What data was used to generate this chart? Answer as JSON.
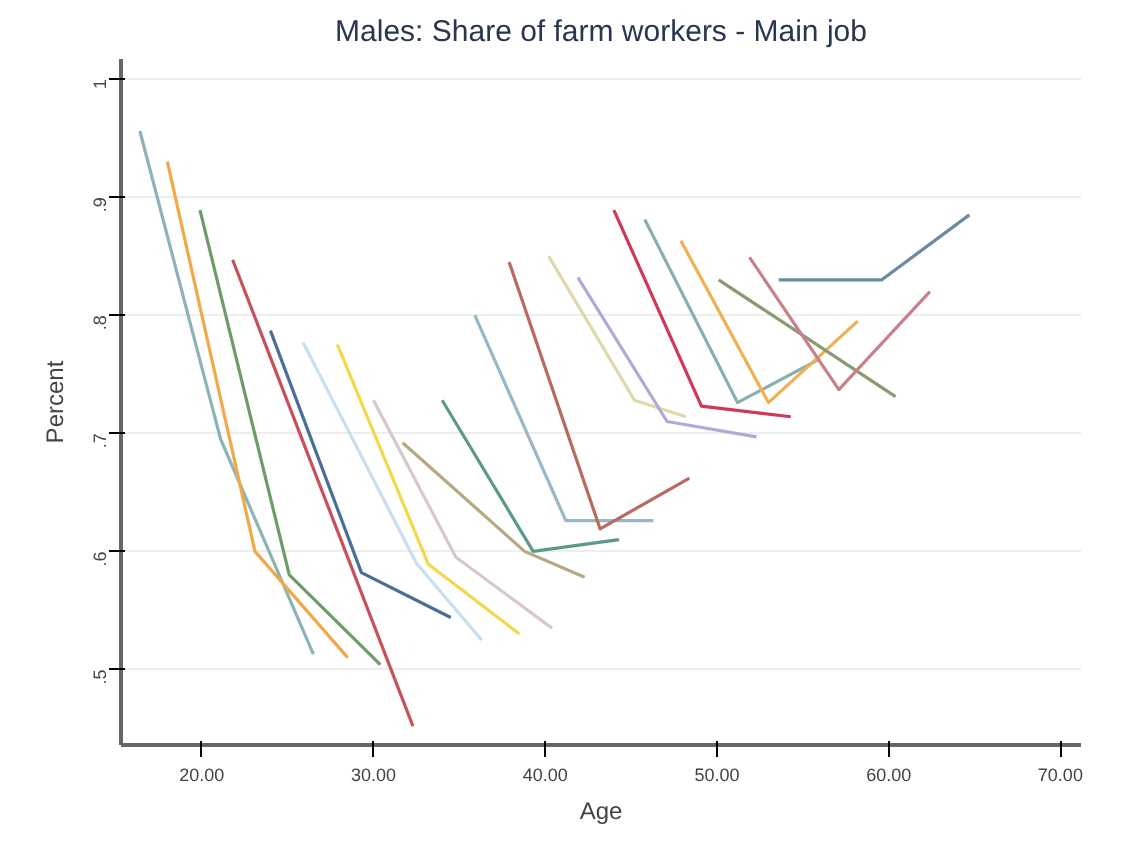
{
  "chart_data": {
    "type": "line",
    "title": "Males: Share of farm workers - Main job",
    "xlabel": "Age",
    "ylabel": "Percent",
    "xlim": [
      15.3,
      71.2
    ],
    "ylim": [
      0.436,
      1.017
    ],
    "xticks": [
      {
        "value": 20,
        "label": "20.00"
      },
      {
        "value": 30,
        "label": "30.00"
      },
      {
        "value": 40,
        "label": "40.00"
      },
      {
        "value": 50,
        "label": "50.00"
      },
      {
        "value": 60,
        "label": "60.00"
      },
      {
        "value": 70,
        "label": "70.00"
      }
    ],
    "yticks": [
      {
        "value": 0.5,
        "label": ".5"
      },
      {
        "value": 0.6,
        "label": ".6"
      },
      {
        "value": 0.7,
        "label": ".7"
      },
      {
        "value": 0.8,
        "label": ".8"
      },
      {
        "value": 0.9,
        "label": ".9"
      },
      {
        "value": 1,
        "label": "1"
      }
    ],
    "grid": "y",
    "marker": "none",
    "line_style": "solid",
    "series": [
      {
        "color": "#8fb1b8",
        "x": [
          16.4,
          21.1,
          26.5
        ],
        "values": [
          0.956,
          0.695,
          0.513
        ]
      },
      {
        "color": "#f0a848",
        "x": [
          18.0,
          23.1,
          28.5
        ],
        "values": [
          0.93,
          0.6,
          0.51
        ]
      },
      {
        "color": "#6f9a6a",
        "x": [
          19.9,
          25.1,
          30.4
        ],
        "values": [
          0.889,
          0.58,
          0.504
        ]
      },
      {
        "color": "#c8505a",
        "x": [
          21.8,
          32.3
        ],
        "values": [
          0.847,
          0.452
        ]
      },
      {
        "color": "#4a6e9a",
        "x": [
          24.0,
          29.3,
          34.5
        ],
        "values": [
          0.787,
          0.582,
          0.544
        ]
      },
      {
        "color": "#c8dff0",
        "x": [
          25.9,
          32.5,
          36.3
        ],
        "values": [
          0.777,
          0.59,
          0.525
        ]
      },
      {
        "color": "#f2d84a",
        "x": [
          27.9,
          33.2,
          38.5
        ],
        "values": [
          0.775,
          0.589,
          0.53
        ]
      },
      {
        "color": "#d8c8c8",
        "x": [
          30.0,
          34.8,
          40.4
        ],
        "values": [
          0.728,
          0.595,
          0.535
        ]
      },
      {
        "color": "#b8a880",
        "x": [
          31.7,
          38.8,
          42.3
        ],
        "values": [
          0.692,
          0.6,
          0.578
        ]
      },
      {
        "color": "#5a9a8a",
        "x": [
          34.0,
          39.3,
          44.3
        ],
        "values": [
          0.728,
          0.6,
          0.61
        ]
      },
      {
        "color": "#98b8c8",
        "x": [
          35.9,
          41.2,
          46.3
        ],
        "values": [
          0.8,
          0.626,
          0.626
        ]
      },
      {
        "color": "#b86a60",
        "x": [
          37.9,
          43.2,
          48.4
        ],
        "values": [
          0.845,
          0.619,
          0.662
        ]
      },
      {
        "color": "#e0d8a8",
        "x": [
          40.2,
          45.2,
          48.2
        ],
        "values": [
          0.85,
          0.728,
          0.714
        ]
      },
      {
        "color": "#b0a8d8",
        "x": [
          41.9,
          47.1,
          52.3
        ],
        "values": [
          0.832,
          0.71,
          0.697
        ]
      },
      {
        "color": "#d03858",
        "x": [
          44.0,
          49.1,
          54.3
        ],
        "values": [
          0.889,
          0.723,
          0.714
        ]
      },
      {
        "color": "#88b0b0",
        "x": [
          45.8,
          51.2,
          56.0
        ],
        "values": [
          0.881,
          0.726,
          0.763
        ]
      },
      {
        "color": "#f0b050",
        "x": [
          47.9,
          53.0,
          58.2
        ],
        "values": [
          0.863,
          0.726,
          0.795
        ]
      },
      {
        "color": "#8a9a70",
        "x": [
          50.1,
          60.4
        ],
        "values": [
          0.83,
          0.731
        ]
      },
      {
        "color": "#c8808a",
        "x": [
          51.9,
          57.1,
          62.4
        ],
        "values": [
          0.849,
          0.737,
          0.82
        ]
      },
      {
        "color": "#6a8aa0",
        "x": [
          53.6,
          59.6,
          64.7
        ],
        "values": [
          0.83,
          0.83,
          0.885
        ]
      }
    ]
  }
}
